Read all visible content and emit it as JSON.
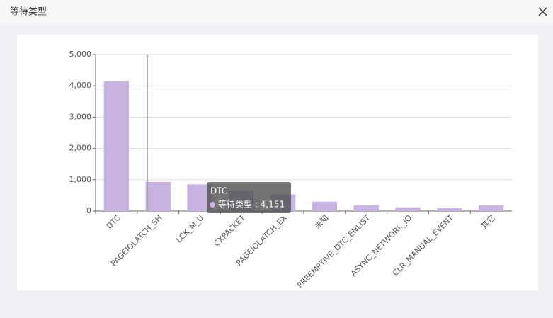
{
  "dialog": {
    "title": "等待类型"
  },
  "chart_data": {
    "type": "bar",
    "categories": [
      "DTC",
      "PAGEIOLATCH_SH",
      "LCK_M_U",
      "CXPACKET",
      "PAGEIOLATCH_EX",
      "未知",
      "PREEMPTIVE_DTC_ENLIST",
      "ASYNC_NETWORK_IO",
      "CLR_MANUAL_EVENT",
      "其它"
    ],
    "series": [
      {
        "name": "等待类型",
        "color": "#c8b2e2",
        "values": [
          4151,
          930,
          850,
          650,
          530,
          300,
          180,
          120,
          90,
          180
        ]
      }
    ],
    "ylim": [
      0,
      5000
    ],
    "yticks": [
      0,
      {
        "value": 1000,
        "label": "1,000"
      },
      {
        "value": 2000,
        "label": "2,000"
      },
      {
        "value": 3000,
        "label": "3,000"
      },
      {
        "value": 4000,
        "label": "4,000"
      },
      {
        "value": 5000,
        "label": "5,000"
      }
    ],
    "grid": true,
    "tooltip": {
      "title": "DTC",
      "label": "等待类型 : 4,151"
    }
  }
}
